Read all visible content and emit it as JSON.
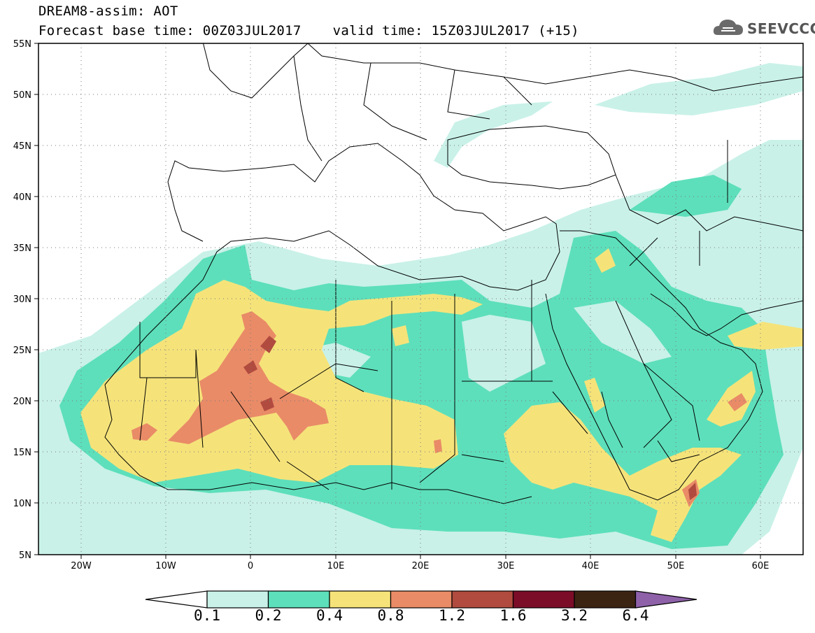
{
  "header": {
    "title": "DREAM8-assim: AOT",
    "base_time": "Forecast base time: 00Z03JUL2017",
    "valid_time": "valid time: 15Z03JUL2017 (+15)"
  },
  "logo": {
    "text": "SEEVCCC",
    "icon": "cloud-icon"
  },
  "map": {
    "lon_range": [
      -25,
      65
    ],
    "lat_range": [
      5,
      55
    ],
    "lat_labels": [
      "55N",
      "50N",
      "45N",
      "40N",
      "35N",
      "30N",
      "25N",
      "20N",
      "15N",
      "10N",
      "5N"
    ],
    "lon_labels": [
      "20W",
      "10W",
      "0",
      "10E",
      "20E",
      "30E",
      "40E",
      "50E",
      "60E"
    ],
    "grid": "dotted"
  },
  "colorbar": {
    "levels": [
      "0.1",
      "0.2",
      "0.4",
      "0.8",
      "1.2",
      "1.6",
      "3.2",
      "6.4"
    ],
    "colors": [
      "#ffffff",
      "#c9f1e8",
      "#5ddfbb",
      "#f5e37a",
      "#e98b67",
      "#b14b3f",
      "#7b0d28",
      "#3c2413",
      "#8e61a8"
    ]
  }
}
